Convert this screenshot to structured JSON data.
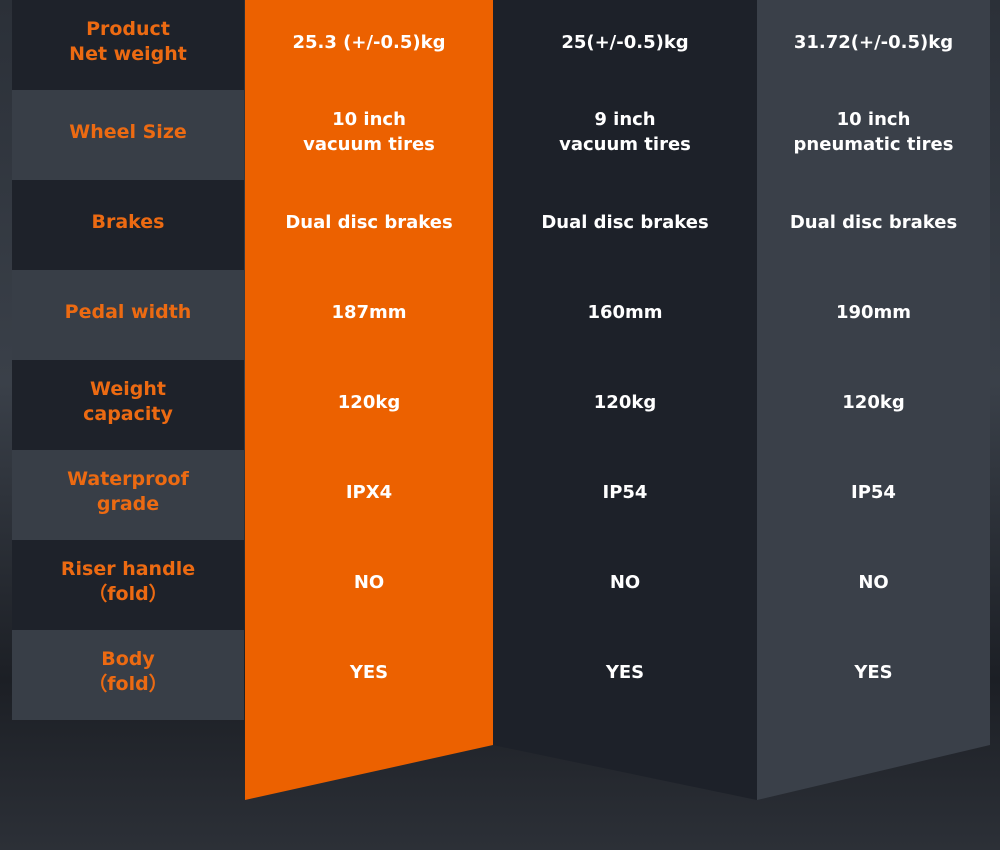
{
  "table": {
    "rows": [
      [
        "Product\nNet weight",
        "25.3 (+/-0.5)kg",
        "25(+/-0.5)kg",
        "31.72(+/-0.5)kg"
      ],
      [
        "Wheel Size",
        "10 inch\nvacuum tires",
        "9 inch\nvacuum tires",
        "10 inch\npneumatic tires"
      ],
      [
        "Brakes",
        "Dual disc brakes",
        "Dual disc brakes",
        "Dual disc brakes"
      ],
      [
        "Pedal width",
        "187mm",
        "160mm",
        "190mm"
      ],
      [
        "Weight\ncapacity",
        "120kg",
        "120kg",
        "120kg"
      ],
      [
        "Waterproof\ngrade",
        "IPX4",
        "IP54",
        "IP54"
      ],
      [
        "Riser handle\n（fold）",
        "NO",
        "NO",
        "NO"
      ],
      [
        "Body\n（fold）",
        "YES",
        "YES",
        "YES"
      ]
    ]
  }
}
